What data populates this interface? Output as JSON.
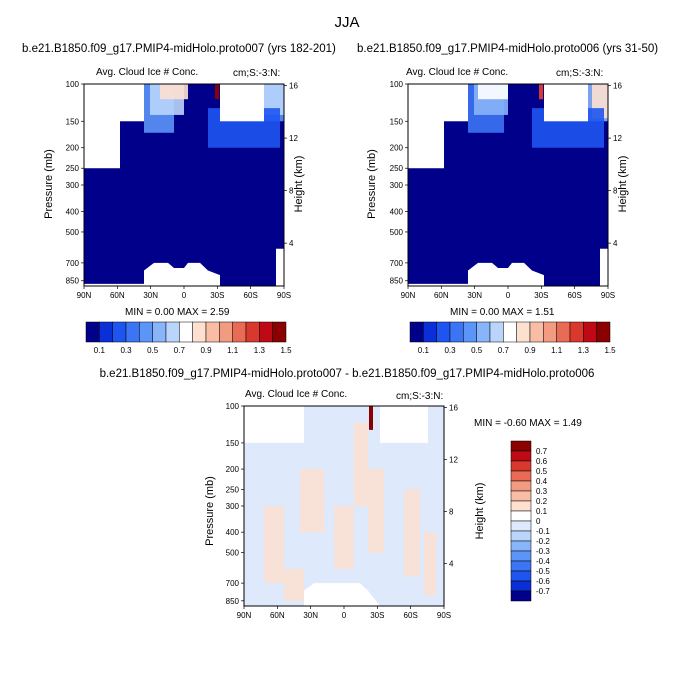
{
  "page_title": "JJA",
  "panels": [
    {
      "title": "b.e21.B1850.f09_g17.PMIP4-midHolo.proto007 (yrs 182-201)",
      "left_label": "Avg. Cloud Ice # Conc.",
      "right_label": "cm;S:-3:N:",
      "ylabel": "Pressure (mb)",
      "y2label": "Height (km)",
      "minmax": "MIN =  0.00  MAX =  2.59"
    },
    {
      "title": "b.e21.B1850.f09_g17.PMIP4-midHolo.proto006 (yrs 31-50)",
      "left_label": "Avg. Cloud Ice # Conc.",
      "right_label": "cm;S:-3:N:",
      "ylabel": "Pressure (mb)",
      "y2label": "Height (km)",
      "minmax": "MIN =  0.00  MAX =  1.51"
    },
    {
      "title": "b.e21.B1850.f09_g17.PMIP4-midHolo.proto007 - b.e21.B1850.f09_g17.PMIP4-midHolo.proto006",
      "left_label": "Avg. Cloud Ice # Conc.",
      "right_label": "cm;S:-3:N:",
      "ylabel": "Pressure (mb)",
      "y2label": "Height (km)",
      "minmax": "MIN = -0.60  MAX =   1.49"
    }
  ],
  "colors": {
    "seq": [
      "#00008b",
      "#0b2fd6",
      "#1e55f0",
      "#3b74f4",
      "#5b95f7",
      "#88b4f9",
      "#b9d5fb",
      "#ffffff",
      "#fde0d0",
      "#f8bda4",
      "#f39b80",
      "#ea6b55",
      "#d9382d",
      "#bd0a14",
      "#8b0000"
    ],
    "diff": [
      "#00008b",
      "#0b2fd6",
      "#1e55f0",
      "#3b74f4",
      "#5b95f7",
      "#88b4f9",
      "#b9d5fb",
      "#deeafb",
      "#ffffff",
      "#fde0d0",
      "#f8bda4",
      "#f39b80",
      "#ea6b55",
      "#d9382d",
      "#bd0a14",
      "#8b0000"
    ]
  },
  "chart_data": [
    {
      "type": "heatmap",
      "title": "b.e21.B1850.f09_g17.PMIP4-midHolo.proto007 (yrs 182-201)",
      "xlabel": "",
      "ylabel": "Pressure (mb)",
      "y2label": "Height (km)",
      "xticks": [
        "90N",
        "60N",
        "30N",
        "0",
        "30S",
        "60S",
        "90S"
      ],
      "yticks": [
        100,
        150,
        200,
        250,
        300,
        400,
        500,
        700,
        850
      ],
      "y2ticks": [
        16,
        12,
        8,
        4
      ],
      "min": 0.0,
      "max": 2.59,
      "colorbar_labels": [
        "0.1",
        "0.3",
        "0.5",
        "0.7",
        "0.9",
        "1.1",
        "1.3",
        "1.5"
      ]
    },
    {
      "type": "heatmap",
      "title": "b.e21.B1850.f09_g17.PMIP4-midHolo.proto006 (yrs 31-50)",
      "xlabel": "",
      "ylabel": "Pressure (mb)",
      "y2label": "Height (km)",
      "xticks": [
        "90N",
        "60N",
        "30N",
        "0",
        "30S",
        "60S",
        "90S"
      ],
      "yticks": [
        100,
        150,
        200,
        250,
        300,
        400,
        500,
        700,
        850
      ],
      "y2ticks": [
        16,
        12,
        8,
        4
      ],
      "min": 0.0,
      "max": 1.51,
      "colorbar_labels": [
        "0.1",
        "0.3",
        "0.5",
        "0.7",
        "0.9",
        "1.1",
        "1.3",
        "1.5"
      ]
    },
    {
      "type": "heatmap",
      "title": "b.e21.B1850.f09_g17.PMIP4-midHolo.proto007 - b.e21.B1850.f09_g17.PMIP4-midHolo.proto006",
      "xlabel": "",
      "ylabel": "Pressure (mb)",
      "y2label": "Height (km)",
      "xticks": [
        "90N",
        "60N",
        "30N",
        "0",
        "30S",
        "60S",
        "90S"
      ],
      "yticks": [
        100,
        150,
        200,
        250,
        300,
        400,
        500,
        700,
        850
      ],
      "y2ticks": [
        16,
        12,
        8,
        4
      ],
      "min": -0.6,
      "max": 1.49,
      "colorbar_labels": [
        "0.7",
        "0.6",
        "0.5",
        "0.4",
        "0.3",
        "0.2",
        "0.1",
        "0",
        "-0.1",
        "-0.2",
        "-0.3",
        "-0.4",
        "-0.5",
        "-0.6",
        "-0.7"
      ]
    }
  ]
}
